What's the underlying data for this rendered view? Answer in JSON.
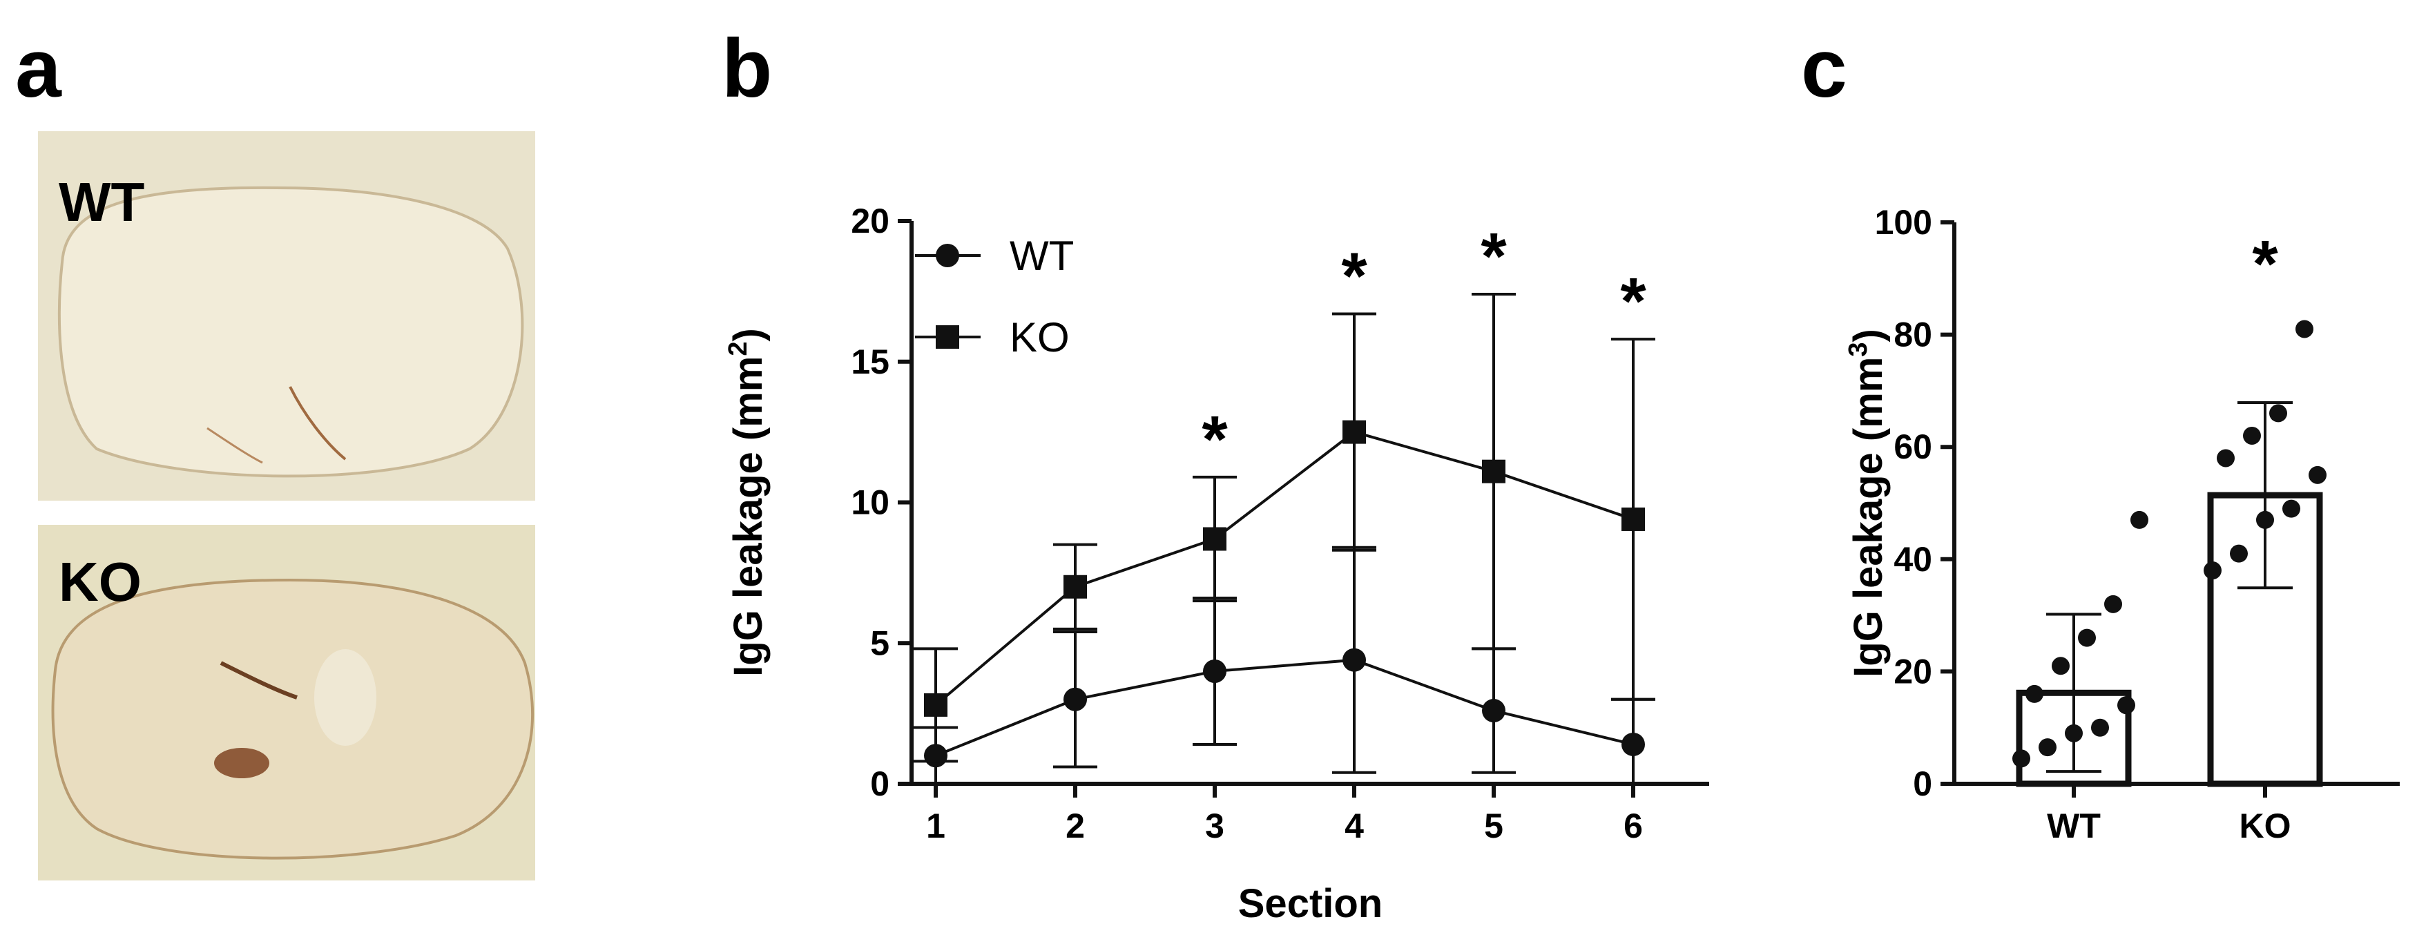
{
  "panels": {
    "a": {
      "letter": "a",
      "images": [
        {
          "label": "WT",
          "description_color": "#e9e2cc"
        },
        {
          "label": "KO",
          "description_color": "#e7e1c4"
        }
      ]
    },
    "b": {
      "letter": "b"
    },
    "c": {
      "letter": "c"
    }
  },
  "colors": {
    "ink": "#111111",
    "tissue": "#ddd3b8",
    "stain": "#8a5a3a",
    "bg_a": "#e9e3cc",
    "bg_b": "#e6e0c2"
  },
  "chart_data": [
    {
      "id": "b",
      "type": "line",
      "title": "",
      "xlabel": "Section",
      "ylabel_main": "IgG leakage (mm",
      "ylabel_sup": "2",
      "ylabel_end": ")",
      "categories": [
        "1",
        "2",
        "3",
        "4",
        "5",
        "6"
      ],
      "ylim": [
        0,
        20
      ],
      "yticks": [
        0,
        5,
        10,
        15,
        20
      ],
      "series": [
        {
          "name": "WT",
          "marker": "circle",
          "values": [
            1.0,
            3.0,
            4.0,
            4.4,
            2.6,
            1.4
          ],
          "err": [
            1.0,
            2.4,
            2.6,
            4.0,
            2.2,
            1.6
          ]
        },
        {
          "name": "KO",
          "marker": "square",
          "values": [
            2.8,
            7.0,
            8.7,
            12.5,
            11.1,
            9.4
          ],
          "err": [
            2.0,
            1.5,
            2.2,
            4.2,
            6.3,
            6.4
          ]
        }
      ],
      "significance": [
        {
          "category": "3",
          "label": "*"
        },
        {
          "category": "4",
          "label": "*"
        },
        {
          "category": "5",
          "label": "*"
        },
        {
          "category": "6",
          "label": "*"
        }
      ]
    },
    {
      "id": "c",
      "type": "bar",
      "title": "",
      "xlabel": "",
      "ylabel_main": "IgG leakage (mm",
      "ylabel_sup": "3",
      "ylabel_end": ")",
      "categories": [
        "WT",
        "KO"
      ],
      "values": [
        16.2,
        51.4
      ],
      "err": [
        14.0,
        16.5
      ],
      "ylim": [
        0,
        100
      ],
      "yticks": [
        0,
        20,
        40,
        60,
        80,
        100
      ],
      "points": [
        [
          4.5,
          6.5,
          9,
          10,
          14,
          16,
          21,
          26,
          32,
          47
        ],
        [
          38,
          41,
          47,
          49,
          55,
          58,
          62,
          66,
          81
        ]
      ],
      "significance": [
        {
          "category": "KO",
          "label": "*"
        }
      ]
    }
  ]
}
